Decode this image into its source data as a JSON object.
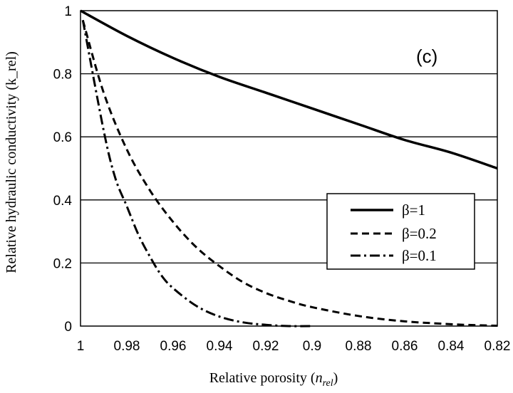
{
  "chart_data": {
    "type": "line",
    "panel_label": "(c)",
    "xlabel_main": "Relative porosity (",
    "xlabel_var": "n",
    "xlabel_sub": "rel",
    "xlabel_close": ")",
    "ylabel": "Relative hydraulic conductivity (k_rel)",
    "xlim": [
      1,
      0.82
    ],
    "ylim": [
      0,
      1
    ],
    "x_ticks": [
      "1",
      "0.98",
      "0.96",
      "0.94",
      "0.92",
      "0.9",
      "0.88",
      "0.86",
      "0.84",
      "0.82"
    ],
    "y_ticks": [
      "0",
      "0.2",
      "0.4",
      "0.6",
      "0.8",
      "1"
    ],
    "grid": "horizontal",
    "legend_position": "inside-right",
    "series": [
      {
        "name": "β=1",
        "style": "solid",
        "x": [
          1.0,
          0.98,
          0.96,
          0.94,
          0.92,
          0.9,
          0.88,
          0.86,
          0.84,
          0.82
        ],
        "y": [
          1.0,
          0.92,
          0.85,
          0.79,
          0.74,
          0.69,
          0.64,
          0.59,
          0.55,
          0.5
        ]
      },
      {
        "name": "β=0.2",
        "style": "dashed",
        "x": [
          0.999,
          0.99,
          0.98,
          0.97,
          0.96,
          0.95,
          0.94,
          0.93,
          0.92,
          0.91,
          0.9,
          0.88,
          0.86,
          0.84,
          0.83,
          0.82
        ],
        "y": [
          0.97,
          0.74,
          0.56,
          0.43,
          0.33,
          0.25,
          0.19,
          0.14,
          0.105,
          0.08,
          0.06,
          0.032,
          0.015,
          0.006,
          0.003,
          0.001
        ]
      },
      {
        "name": "β=0.1",
        "style": "dashdot",
        "x": [
          0.999,
          0.99,
          0.985,
          0.98,
          0.975,
          0.97,
          0.965,
          0.96,
          0.95,
          0.94,
          0.93,
          0.92,
          0.91,
          0.9
        ],
        "y": [
          0.97,
          0.62,
          0.47,
          0.38,
          0.29,
          0.22,
          0.16,
          0.12,
          0.064,
          0.03,
          0.012,
          0.004,
          0.0,
          0.0
        ]
      }
    ]
  }
}
